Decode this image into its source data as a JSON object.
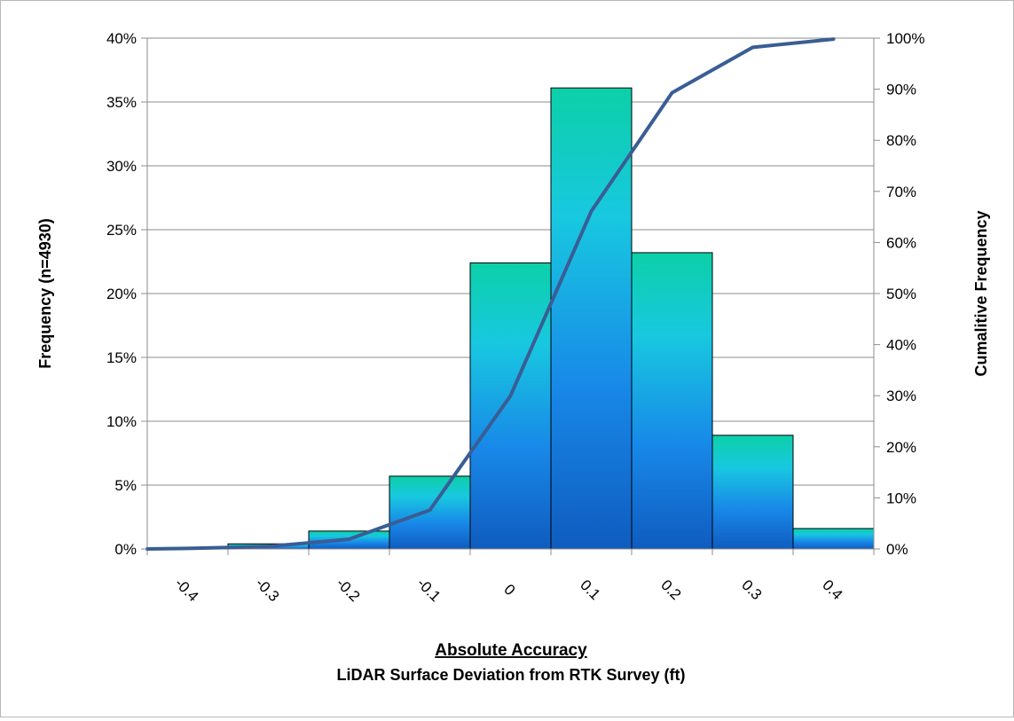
{
  "chart_data": {
    "type": "bar",
    "title": "",
    "xlabel": "Absolute Accuracy",
    "xlabel_sub": "LiDAR Surface Deviation from RTK Survey (ft)",
    "ylabel": "Frequency (n=4930)",
    "y2label": "Cumalitive Frequency",
    "x_ticks": [
      "-0.4",
      "-0.3",
      "-0.2",
      "-0.1",
      "0",
      "0.1",
      "0.2",
      "0.3",
      "0.4"
    ],
    "bins": [
      {
        "from": -0.45,
        "to": -0.35,
        "value": 0.1
      },
      {
        "from": -0.35,
        "to": -0.25,
        "value": 0.4
      },
      {
        "from": -0.25,
        "to": -0.15,
        "value": 1.4
      },
      {
        "from": -0.15,
        "to": -0.05,
        "value": 5.7
      },
      {
        "from": -0.05,
        "to": 0.05,
        "value": 22.4
      },
      {
        "from": 0.05,
        "to": 0.15,
        "value": 36.1
      },
      {
        "from": 0.15,
        "to": 0.25,
        "value": 23.2
      },
      {
        "from": 0.25,
        "to": 0.35,
        "value": 8.9
      },
      {
        "from": 0.35,
        "to": 0.45,
        "value": 1.6
      }
    ],
    "ylim": [
      0,
      40
    ],
    "y_ticks": [
      "0%",
      "5%",
      "10%",
      "15%",
      "20%",
      "25%",
      "30%",
      "35%",
      "40%"
    ],
    "y2lim": [
      0,
      100
    ],
    "y2_ticks": [
      "0%",
      "10%",
      "20%",
      "30%",
      "40%",
      "50%",
      "60%",
      "70%",
      "80%",
      "90%",
      "100%"
    ],
    "cumulative": {
      "name": "",
      "axis": "right",
      "x": [
        -0.45,
        -0.4,
        -0.3,
        -0.2,
        -0.1,
        0.0,
        0.1,
        0.2,
        0.3,
        0.4
      ],
      "values": [
        0.0,
        0.1,
        0.5,
        1.9,
        7.6,
        30.0,
        66.1,
        89.3,
        98.2,
        99.8
      ]
    },
    "grid": true,
    "legend": "none",
    "colors": {
      "bar_top": "#0cd0a8",
      "bar_mid": "#18c8e0",
      "bar_low": "#1888e8",
      "bar_bottom": "#0f5cbf",
      "bar_stroke": "#000000",
      "line": "#3a5d94",
      "grid": "#8c8c8c"
    }
  }
}
